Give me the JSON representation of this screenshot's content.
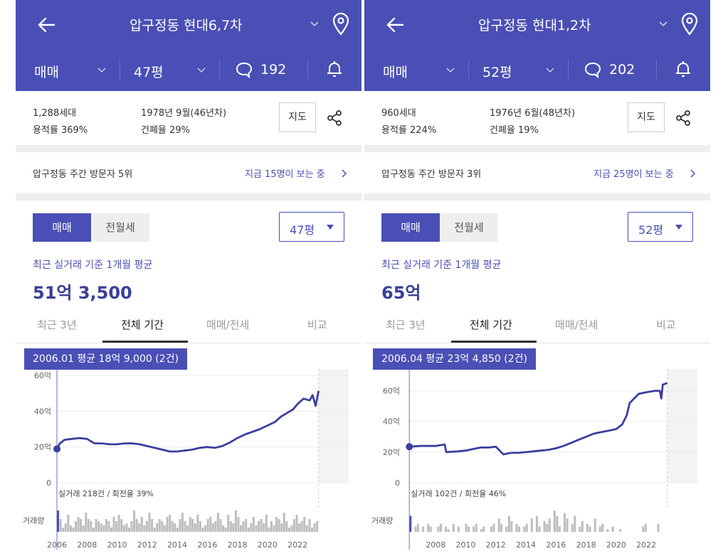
{
  "colors": {
    "primary": "#4a4fb5",
    "line": "#3b3f9f",
    "bar": "#bdbdbd",
    "bar_selected": "#4a4fb5",
    "future_band": "#f3f3f3"
  },
  "icons": {
    "back": "arrow-left-icon",
    "title_dropdown": "chevron-down-icon",
    "location": "map-pin-icon",
    "chat": "chat-bubble-icon",
    "alarm": "bell-icon",
    "share": "share-icon",
    "more": "chevron-right-icon",
    "size_dropdown": "caret-down-icon"
  },
  "panels": [
    {
      "header": {
        "title": "압구정동 현대6,7차"
      },
      "subbar": {
        "trade_type": "매매",
        "size": "47평",
        "comment_count": "192"
      },
      "info": {
        "households": "1,288세대",
        "far": "용적률 369%",
        "built": "1978년 9월(46년차)",
        "bcr": "건폐율 29%",
        "map_button": "지도"
      },
      "visitors": {
        "rank": "압구정동 주간 방문자 5위",
        "viewing": "지금 15명이 보는 중"
      },
      "price_section": {
        "toggle_active": "매매",
        "toggle_inactive": "전월세",
        "size_select": "47평",
        "avg_label": "최근 실거래 기준 1개월 평균",
        "avg_value": "51억 3,500"
      },
      "tabs": [
        "최근 3년",
        "전체 기간",
        "매매/전세",
        "비교"
      ],
      "active_tab": 1,
      "tooltip": "2006.01 평균 18억 9,000 (2건)",
      "chart_data": {
        "type": "line",
        "y_unit": "억",
        "y_ticks": [
          {
            "value": 60,
            "label": "60억"
          },
          {
            "value": 40,
            "label": "40억"
          },
          {
            "value": 20,
            "label": "20억"
          },
          {
            "value": 0,
            "label": "0"
          }
        ],
        "x_ticks": [
          "2006",
          "2008",
          "2010",
          "2012",
          "2014",
          "2016",
          "2018",
          "2020",
          "2022"
        ],
        "xlim": [
          2006,
          2025.4
        ],
        "ylim": [
          0,
          60
        ],
        "future_from": 2023.4,
        "cursor_x": 2006.0,
        "cursor_value": 18.9,
        "series": [
          {
            "points": [
              [
                2006.0,
                18.9
              ],
              [
                2006.2,
                22.0
              ],
              [
                2006.5,
                24.0
              ],
              [
                2007.0,
                24.5
              ],
              [
                2007.5,
                25.0
              ],
              [
                2008.0,
                24.5
              ],
              [
                2008.5,
                22.0
              ],
              [
                2009.0,
                22.0
              ],
              [
                2009.5,
                21.5
              ],
              [
                2010.0,
                21.5
              ],
              [
                2010.5,
                22.0
              ],
              [
                2011.0,
                22.0
              ],
              [
                2011.5,
                21.5
              ],
              [
                2012.0,
                20.5
              ],
              [
                2012.5,
                19.5
              ],
              [
                2013.0,
                18.5
              ],
              [
                2013.5,
                17.5
              ],
              [
                2014.0,
                17.5
              ],
              [
                2014.5,
                18.0
              ],
              [
                2015.0,
                18.5
              ],
              [
                2015.5,
                19.5
              ],
              [
                2016.0,
                20.0
              ],
              [
                2016.5,
                19.5
              ],
              [
                2017.0,
                20.5
              ],
              [
                2017.5,
                22.5
              ],
              [
                2018.0,
                25.0
              ],
              [
                2018.5,
                27.0
              ],
              [
                2019.0,
                28.5
              ],
              [
                2019.5,
                30.0
              ],
              [
                2020.0,
                32.0
              ],
              [
                2020.5,
                34.0
              ],
              [
                2020.9,
                37.0
              ],
              [
                2021.3,
                39.0
              ],
              [
                2021.7,
                41.0
              ],
              [
                2022.0,
                44.0
              ],
              [
                2022.4,
                47.0
              ],
              [
                2022.8,
                46.0
              ],
              [
                2023.0,
                49.0
              ],
              [
                2023.2,
                43.0
              ],
              [
                2023.4,
                51.35
              ]
            ]
          }
        ],
        "volume": {
          "label": "거래량",
          "summary": "실거래 218건 / 회전율 39%",
          "selected_index": 0,
          "values": [
            10,
            6,
            2,
            4,
            8,
            3,
            2,
            5,
            7,
            6,
            3,
            9,
            6,
            5,
            2,
            6,
            5,
            4,
            3,
            6,
            5,
            2,
            7,
            5,
            8,
            6,
            3,
            4,
            2,
            5,
            10,
            6,
            4,
            7,
            3,
            5,
            9,
            6,
            2,
            4,
            6,
            5,
            3,
            7,
            8,
            5,
            4,
            2,
            6,
            9,
            5,
            3,
            7,
            6,
            4,
            8,
            5,
            2,
            3,
            6,
            7,
            4,
            5,
            9,
            6,
            3,
            2,
            8,
            5,
            4,
            10,
            7,
            3,
            5,
            6,
            2,
            4,
            7,
            3,
            5,
            6,
            4,
            8,
            2,
            5,
            3,
            7,
            6,
            4,
            9,
            5,
            2,
            3,
            6,
            8,
            4,
            5,
            7,
            3,
            6,
            2,
            4,
            5
          ]
        }
      }
    },
    {
      "header": {
        "title": "압구정동 현대1,2차"
      },
      "subbar": {
        "trade_type": "매매",
        "size": "52평",
        "comment_count": "202"
      },
      "info": {
        "households": "960세대",
        "far": "용적률 224%",
        "built": "1976년 6월(48년차)",
        "bcr": "건폐율 19%",
        "map_button": "지도"
      },
      "visitors": {
        "rank": "압구정동 주간 방문자 3위",
        "viewing": "지금 25명이 보는 중"
      },
      "price_section": {
        "toggle_active": "매매",
        "toggle_inactive": "전월세",
        "size_select": "52평",
        "avg_label": "최근 실거래 기준 1개월 평균",
        "avg_value": "65억"
      },
      "tabs": [
        "최근 3년",
        "전체 기간",
        "매매/전세",
        "비교"
      ],
      "active_tab": 1,
      "tooltip": "2006.04 평균 23억 4,850 (2건)",
      "chart_data": {
        "type": "line",
        "y_unit": "억",
        "y_ticks": [
          {
            "value": 60,
            "label": "60억"
          },
          {
            "value": 40,
            "label": "40억"
          },
          {
            "value": 20,
            "label": "20억"
          },
          {
            "value": 0,
            "label": "0"
          }
        ],
        "x_ticks": [
          "2008",
          "2010",
          "2012",
          "2014",
          "2016",
          "2018",
          "2020",
          "2022"
        ],
        "xlim": [
          2006,
          2025.4
        ],
        "ylim": [
          0,
          70
        ],
        "future_from": 2023.4,
        "cursor_x": 2006.25,
        "cursor_value": 23.5,
        "series": [
          {
            "points": [
              [
                2006.25,
                23.5
              ],
              [
                2007.0,
                24.0
              ],
              [
                2008.0,
                24.0
              ],
              [
                2008.6,
                25.0
              ],
              [
                2008.7,
                20.0
              ],
              [
                2009.5,
                20.5
              ],
              [
                2010.0,
                21.0
              ],
              [
                2010.5,
                22.0
              ],
              [
                2011.0,
                23.0
              ],
              [
                2011.5,
                23.0
              ],
              [
                2012.0,
                23.5
              ],
              [
                2012.5,
                18.5
              ],
              [
                2013.0,
                19.5
              ],
              [
                2013.5,
                19.5
              ],
              [
                2014.0,
                20.0
              ],
              [
                2014.5,
                20.5
              ],
              [
                2015.0,
                21.0
              ],
              [
                2015.5,
                21.5
              ],
              [
                2016.0,
                22.5
              ],
              [
                2016.5,
                24.0
              ],
              [
                2017.0,
                26.0
              ],
              [
                2017.5,
                28.0
              ],
              [
                2018.0,
                30.0
              ],
              [
                2018.5,
                32.0
              ],
              [
                2019.0,
                33.0
              ],
              [
                2019.5,
                34.0
              ],
              [
                2020.0,
                35.0
              ],
              [
                2020.4,
                38.0
              ],
              [
                2020.7,
                44.0
              ],
              [
                2020.9,
                52.0
              ],
              [
                2021.2,
                55.0
              ],
              [
                2021.5,
                58.0
              ],
              [
                2022.0,
                59.0
              ],
              [
                2022.6,
                60.0
              ],
              [
                2022.9,
                60.0
              ],
              [
                2023.0,
                55.0
              ],
              [
                2023.1,
                64.0
              ],
              [
                2023.4,
                65.0
              ]
            ]
          }
        ],
        "volume": {
          "label": "거래량",
          "summary": "실거래 102건 / 회전율 46%",
          "selected_index": 0,
          "values": [
            6,
            0,
            2,
            3,
            0,
            2,
            0,
            3,
            2,
            0,
            0,
            2,
            3,
            0,
            2,
            1,
            0,
            3,
            0,
            2,
            0,
            0,
            3,
            2,
            0,
            2,
            3,
            0,
            1,
            2,
            0,
            0,
            2,
            3,
            0,
            5,
            3,
            0,
            2,
            6,
            4,
            0,
            3,
            2,
            0,
            2,
            3,
            0,
            5,
            0,
            6,
            2,
            0,
            4,
            3,
            5,
            0,
            8,
            6,
            2,
            0,
            7,
            5,
            0,
            3,
            6,
            0,
            2,
            4,
            0,
            3,
            2,
            0,
            5,
            0,
            2,
            3,
            0,
            1,
            0,
            2,
            0,
            0,
            1,
            0,
            0,
            0,
            0,
            0,
            0,
            0,
            0,
            2,
            3,
            0,
            0,
            0,
            0,
            3,
            0,
            0,
            0
          ]
        }
      }
    }
  ]
}
